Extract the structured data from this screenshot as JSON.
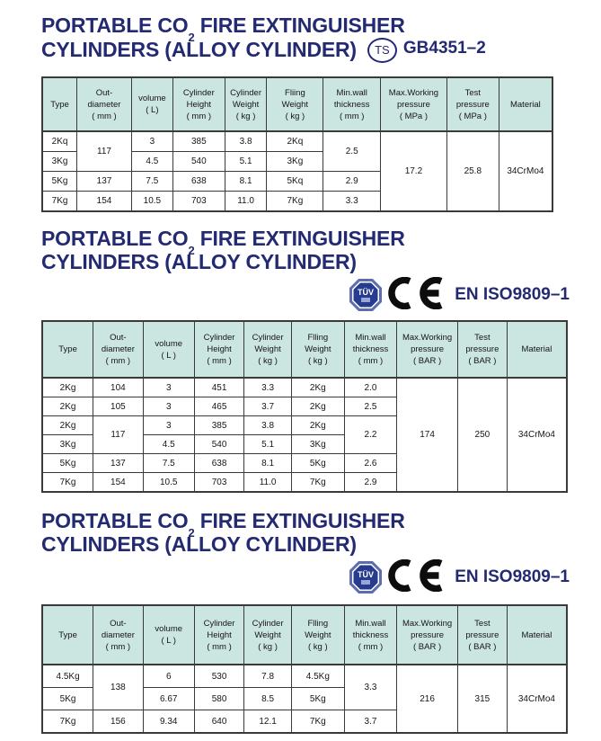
{
  "palette": {
    "title_navy": "#232a72",
    "table_header_teal": "#cbe5e0",
    "table_border": "#3a3a3a",
    "ce_black": "#0d0d0d",
    "tuv_blue_outer": "#5d6dae",
    "tuv_blue_inner": "#283c8f"
  },
  "sections": [
    {
      "title": {
        "line1_pre": "PORTABLE CO",
        "sub": "2",
        "line1_post": " FIRE EXTINGUISHER",
        "line2": "CYLINDERS (ALLOY CYLINDER)"
      },
      "cert": {
        "mark": "TS",
        "standard": "GB4351–2"
      }
    },
    {
      "title": {
        "line1_pre": "PORTABLE CO",
        "sub": "2",
        "line1_post": " FIRE EXTINGUISHER",
        "line2": "CYLINDERS (ALLOY CYLINDER)"
      },
      "cert": {
        "tuv": "TÜV",
        "standard": "EN ISO9809–1"
      }
    },
    {
      "title": {
        "line1_pre": "PORTABLE CO",
        "sub": "2",
        "line1_post": " FIRE EXTINGUISHER",
        "line2": "CYLINDERS (ALLOY CYLINDER)"
      },
      "cert": {
        "tuv": "TÜV",
        "standard": "EN ISO9809–1"
      }
    }
  ],
  "tables": [
    {
      "headers": [
        [
          "Type"
        ],
        [
          "Out-",
          "diameter",
          "( mm )"
        ],
        [
          "volume",
          "( L)"
        ],
        [
          "Cylinder",
          "Height",
          "( mm )"
        ],
        [
          "Cylinder",
          "Weight",
          "( kg )"
        ],
        [
          "Fliing",
          "Weight",
          "( kg )"
        ],
        [
          "Min.wall",
          "thickness",
          "( mm )"
        ],
        [
          "Max.Working",
          "pressure",
          "( MPa )"
        ],
        [
          "Test",
          "pressure",
          "( MPa )"
        ],
        [
          "Material"
        ]
      ],
      "rows": [
        [
          {
            "v": "2Kq"
          },
          {
            "v": "117",
            "rs": 2
          },
          {
            "v": "3"
          },
          {
            "v": "385"
          },
          {
            "v": "3.8"
          },
          {
            "v": "2Kq"
          },
          {
            "v": "2.5",
            "rs": 2,
            "top": true
          },
          {
            "v": "17.2",
            "rs": 4
          },
          {
            "v": "25.8",
            "rs": 4
          },
          {
            "v": "34CrMo4",
            "rs": 4
          }
        ],
        [
          {
            "v": "3Kg"
          },
          {
            "v": "4.5"
          },
          {
            "v": "540"
          },
          {
            "v": "5.1"
          },
          {
            "v": "3Kg"
          }
        ],
        [
          {
            "v": "5Kg"
          },
          {
            "v": "137"
          },
          {
            "v": "7.5"
          },
          {
            "v": "638"
          },
          {
            "v": "8.1"
          },
          {
            "v": "5Kq"
          },
          {
            "v": "2.9"
          }
        ],
        [
          {
            "v": "7Kg"
          },
          {
            "v": "154"
          },
          {
            "v": "10.5"
          },
          {
            "v": "703"
          },
          {
            "v": "11.0"
          },
          {
            "v": "7Kg"
          },
          {
            "v": "3.3"
          }
        ]
      ]
    },
    {
      "headers": [
        [
          "Type"
        ],
        [
          "Out-",
          "diameter",
          "( mm )"
        ],
        [
          "volume",
          "( L )"
        ],
        [
          "Cylinder",
          "Height",
          "( mm )"
        ],
        [
          "Cylinder",
          "Weight",
          "( kg )"
        ],
        [
          "Flling",
          "Weight",
          "( kg )"
        ],
        [
          "Min.wall",
          "thickness",
          "( mm )"
        ],
        [
          "Max.Working",
          "pressure",
          "( BAR )"
        ],
        [
          "Test",
          "pressure",
          "( BAR )"
        ],
        [
          "Material"
        ]
      ],
      "rows": [
        [
          {
            "v": "2Kg"
          },
          {
            "v": "104"
          },
          {
            "v": "3"
          },
          {
            "v": "451"
          },
          {
            "v": "3.3"
          },
          {
            "v": "2Kg"
          },
          {
            "v": "2.0"
          },
          {
            "v": "174",
            "rs": 6
          },
          {
            "v": "250",
            "rs": 6
          },
          {
            "v": "34CrMo4",
            "rs": 6
          }
        ],
        [
          {
            "v": "2Kg"
          },
          {
            "v": "105"
          },
          {
            "v": "3"
          },
          {
            "v": "465"
          },
          {
            "v": "3.7"
          },
          {
            "v": "2Kg"
          },
          {
            "v": "2.5"
          }
        ],
        [
          {
            "v": "2Kg"
          },
          {
            "v": "117",
            "rs": 2
          },
          {
            "v": "3"
          },
          {
            "v": "385"
          },
          {
            "v": "3.8"
          },
          {
            "v": "2Kg"
          },
          {
            "v": "2.2",
            "rs": 2
          }
        ],
        [
          {
            "v": "3Kg"
          },
          {
            "v": "4.5"
          },
          {
            "v": "540"
          },
          {
            "v": "5.1"
          },
          {
            "v": "3Kg"
          }
        ],
        [
          {
            "v": "5Kg"
          },
          {
            "v": "137"
          },
          {
            "v": "7.5"
          },
          {
            "v": "638"
          },
          {
            "v": "8.1"
          },
          {
            "v": "5Kg"
          },
          {
            "v": "2.6"
          }
        ],
        [
          {
            "v": "7Kg"
          },
          {
            "v": "154"
          },
          {
            "v": "10.5"
          },
          {
            "v": "703"
          },
          {
            "v": "11.0"
          },
          {
            "v": "7Kg"
          },
          {
            "v": "2.9"
          }
        ]
      ]
    },
    {
      "headers": [
        [
          "Type"
        ],
        [
          "Out-",
          "diameter",
          "( mm )"
        ],
        [
          "volume",
          "( L )"
        ],
        [
          "Cylinder",
          "Height",
          "( mm )"
        ],
        [
          "Cylinder",
          "Weight",
          "( kg )"
        ],
        [
          "Flling",
          "Weight",
          "( kg )"
        ],
        [
          "Min.wall",
          "thickness",
          "( mm )"
        ],
        [
          "Max.Working",
          "pressure",
          "( BAR )"
        ],
        [
          "Test",
          "pressure",
          "( BAR )"
        ],
        [
          "Material"
        ]
      ],
      "rows": [
        [
          {
            "v": "4.5Kg"
          },
          {
            "v": "138",
            "rs": 2
          },
          {
            "v": "6"
          },
          {
            "v": "530"
          },
          {
            "v": "7.8"
          },
          {
            "v": "4.5Kg"
          },
          {
            "v": "3.3",
            "rs": 2
          },
          {
            "v": "216",
            "rs": 3
          },
          {
            "v": "315",
            "rs": 3
          },
          {
            "v": "34CrMo4",
            "rs": 3
          }
        ],
        [
          {
            "v": "5Kg"
          },
          {
            "v": "6.67"
          },
          {
            "v": "580"
          },
          {
            "v": "8.5"
          },
          {
            "v": "5Kg"
          }
        ],
        [
          {
            "v": "7Kg"
          },
          {
            "v": "156"
          },
          {
            "v": "9.34"
          },
          {
            "v": "640"
          },
          {
            "v": "12.1"
          },
          {
            "v": "7Kg"
          },
          {
            "v": "3.7"
          }
        ]
      ]
    }
  ]
}
